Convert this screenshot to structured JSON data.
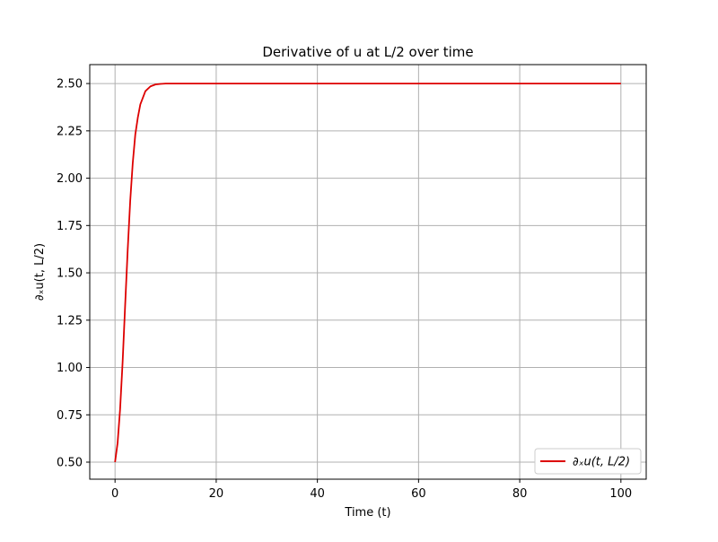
{
  "chart_data": {
    "type": "line",
    "title": "Derivative of u at L/2 over time",
    "xlabel": "Time (t)",
    "ylabel": "∂ₓu(t, L/2)",
    "xlim": [
      -5,
      105
    ],
    "ylim": [
      0.41,
      2.6
    ],
    "x_ticks": [
      0,
      20,
      40,
      60,
      80,
      100
    ],
    "x_tick_labels": [
      "0",
      "20",
      "40",
      "60",
      "80",
      "100"
    ],
    "y_ticks": [
      0.5,
      0.75,
      1.0,
      1.25,
      1.5,
      1.75,
      2.0,
      2.25,
      2.5
    ],
    "y_tick_labels": [
      "0.50",
      "0.75",
      "1.00",
      "1.25",
      "1.50",
      "1.75",
      "2.00",
      "2.25",
      "2.50"
    ],
    "grid": true,
    "legend_position": "lower-right",
    "series": [
      {
        "name": "∂ₓu(t, L/2)",
        "color": "#dd0000",
        "x": [
          0,
          0.5,
          1,
          1.5,
          2,
          2.5,
          3,
          3.5,
          4,
          4.5,
          5,
          6,
          7,
          8,
          9,
          10,
          12,
          15,
          20,
          30,
          40,
          50,
          60,
          70,
          80,
          90,
          100
        ],
        "y": [
          0.5,
          0.6,
          0.78,
          1.03,
          1.33,
          1.62,
          1.88,
          2.08,
          2.23,
          2.32,
          2.39,
          2.46,
          2.485,
          2.495,
          2.498,
          2.5,
          2.5,
          2.5,
          2.5,
          2.5,
          2.5,
          2.5,
          2.5,
          2.5,
          2.5,
          2.5,
          2.5
        ]
      }
    ]
  }
}
